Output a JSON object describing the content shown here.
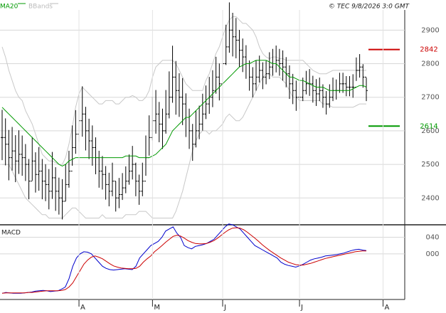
{
  "header": {
    "legend": [
      {
        "label": "MA20",
        "color": "#009900"
      },
      {
        "label": "BBands",
        "color": "#bbbbbb"
      }
    ],
    "copyright": "© TEC 9/8/2026 3:0 GMT"
  },
  "chart_data": [
    {
      "type": "ohlc",
      "ylim": [
        2320,
        2960
      ],
      "y_ticks": [
        {
          "value": 2400,
          "label": "2400"
        },
        {
          "value": 2500,
          "label": "2500"
        },
        {
          "value": 2600,
          "label": "2600"
        },
        {
          "value": 2700,
          "label": "2700"
        },
        {
          "value": 2800,
          "label": "2800"
        },
        {
          "value": 2900,
          "label": "2900"
        }
      ],
      "x_ticks": [
        "A",
        "M",
        "J",
        "J",
        "A"
      ],
      "x_tick_positions": [
        23,
        45,
        66,
        89,
        114
      ],
      "series_close": [
        2580,
        2560,
        2520,
        2540,
        2510,
        2530,
        2520,
        2500,
        2450,
        2510,
        2470,
        2480,
        2450,
        2440,
        2420,
        2460,
        2420,
        2400,
        2390,
        2440,
        2480,
        2550,
        2590,
        2630,
        2650,
        2600,
        2570,
        2550,
        2520,
        2480,
        2470,
        2440,
        2420,
        2450,
        2400,
        2410,
        2430,
        2450,
        2480,
        2500,
        2450,
        2420,
        2450,
        2520,
        2580,
        2630,
        2650,
        2620,
        2600,
        2650,
        2700,
        2760,
        2720,
        2700,
        2680,
        2640,
        2600,
        2560,
        2600,
        2620,
        2650,
        2680,
        2700,
        2720,
        2760,
        2740,
        2800,
        2850,
        2900,
        2880,
        2870,
        2840,
        2820,
        2800,
        2760,
        2740,
        2760,
        2780,
        2760,
        2770,
        2790,
        2800,
        2810,
        2800,
        2790,
        2770,
        2740,
        2720,
        2700,
        2700,
        2720,
        2740,
        2740,
        2720,
        2710,
        2720,
        2700,
        2680,
        2700,
        2720,
        2720,
        2740,
        2740,
        2730,
        2730,
        2730,
        2780,
        2790,
        2760,
        2720
      ],
      "series_range": [
        150,
        140,
        150,
        130,
        140,
        130,
        120,
        110,
        120,
        130,
        120,
        130,
        120,
        110,
        120,
        140,
        130,
        110,
        120,
        110,
        110,
        120,
        130,
        140,
        150,
        130,
        120,
        120,
        110,
        110,
        100,
        100,
        100,
        100,
        90,
        90,
        80,
        80,
        90,
        100,
        100,
        90,
        100,
        120,
        120,
        130,
        130,
        120,
        120,
        130,
        140,
        170,
        160,
        130,
        140,
        130,
        120,
        110,
        110,
        100,
        110,
        100,
        110,
        110,
        110,
        110,
        120,
        120,
        150,
        130,
        120,
        110,
        100,
        100,
        90,
        90,
        90,
        80,
        80,
        70,
        80,
        80,
        80,
        80,
        90,
        90,
        100,
        90,
        90,
        80,
        70,
        70,
        80,
        80,
        80,
        70,
        70,
        70,
        70,
        70,
        60,
        60,
        60,
        60,
        60,
        70,
        70,
        70,
        70,
        70
      ],
      "ma20": [
        2670,
        2660,
        2650,
        2640,
        2630,
        2620,
        2610,
        2600,
        2590,
        2580,
        2570,
        2560,
        2550,
        2540,
        2530,
        2520,
        2510,
        2500,
        2495,
        2500,
        2510,
        2515,
        2520,
        2520,
        2520,
        2520,
        2520,
        2520,
        2520,
        2520,
        2520,
        2520,
        2520,
        2520,
        2520,
        2520,
        2520,
        2525,
        2525,
        2525,
        2525,
        2520,
        2520,
        2520,
        2520,
        2525,
        2530,
        2540,
        2550,
        2560,
        2580,
        2600,
        2610,
        2620,
        2630,
        2640,
        2640,
        2650,
        2660,
        2670,
        2680,
        2690,
        2700,
        2710,
        2720,
        2730,
        2740,
        2750,
        2760,
        2770,
        2780,
        2790,
        2795,
        2800,
        2800,
        2805,
        2810,
        2810,
        2810,
        2810,
        2805,
        2800,
        2800,
        2790,
        2780,
        2770,
        2760,
        2760,
        2755,
        2750,
        2750,
        2745,
        2740,
        2735,
        2730,
        2730,
        2730,
        2725,
        2720,
        2720,
        2720,
        2720,
        2720,
        2720,
        2720,
        2725,
        2730,
        2735,
        2735,
        2730
      ],
      "bb_upper": [
        2850,
        2820,
        2780,
        2750,
        2720,
        2700,
        2690,
        2660,
        2640,
        2620,
        2590,
        2560,
        2530,
        2520,
        2510,
        2510,
        2505,
        2500,
        2500,
        2520,
        2560,
        2610,
        2670,
        2710,
        2730,
        2720,
        2710,
        2700,
        2690,
        2680,
        2680,
        2690,
        2690,
        2690,
        2680,
        2680,
        2690,
        2700,
        2700,
        2705,
        2700,
        2690,
        2690,
        2700,
        2720,
        2760,
        2790,
        2800,
        2810,
        2810,
        2810,
        2810,
        2800,
        2780,
        2760,
        2740,
        2730,
        2720,
        2720,
        2720,
        2720,
        2750,
        2770,
        2800,
        2830,
        2850,
        2880,
        2910,
        2930,
        2940,
        2940,
        2930,
        2920,
        2920,
        2910,
        2900,
        2880,
        2850,
        2830,
        2820,
        2815,
        2820,
        2820,
        2815,
        2815,
        2810,
        2810,
        2810,
        2810,
        2810,
        2810,
        2800,
        2790,
        2780,
        2775,
        2770,
        2770,
        2770,
        2775,
        2780,
        2780,
        2780,
        2780,
        2780,
        2780,
        2780,
        2780,
        2780,
        2780,
        2780
      ],
      "bb_lower": [
        2500,
        2500,
        2500,
        2480,
        2460,
        2440,
        2420,
        2400,
        2390,
        2380,
        2370,
        2360,
        2350,
        2350,
        2340,
        2340,
        2340,
        2340,
        2340,
        2350,
        2360,
        2370,
        2370,
        2360,
        2350,
        2340,
        2340,
        2340,
        2340,
        2340,
        2350,
        2340,
        2340,
        2340,
        2340,
        2340,
        2340,
        2350,
        2350,
        2350,
        2350,
        2360,
        2360,
        2360,
        2350,
        2340,
        2340,
        2340,
        2340,
        2340,
        2340,
        2340,
        2360,
        2390,
        2420,
        2460,
        2500,
        2540,
        2570,
        2590,
        2600,
        2600,
        2590,
        2600,
        2600,
        2610,
        2620,
        2640,
        2650,
        2640,
        2630,
        2630,
        2640,
        2660,
        2680,
        2700,
        2720,
        2740,
        2760,
        2770,
        2770,
        2760,
        2760,
        2760,
        2750,
        2740,
        2720,
        2700,
        2700,
        2690,
        2690,
        2690,
        2690,
        2690,
        2690,
        2690,
        2680,
        2680,
        2675,
        2670,
        2670,
        2670,
        2670,
        2670,
        2670,
        2670,
        2675,
        2680,
        2680,
        2680
      ],
      "reference_lines": [
        {
          "value": 2842,
          "label": "2842",
          "color": "#cc0000"
        },
        {
          "value": 2614,
          "label": "2614",
          "color": "#009900"
        }
      ]
    },
    {
      "type": "line",
      "title": "MACD",
      "ylim": [
        -110,
        70
      ],
      "y_ticks": [
        {
          "value": 40,
          "label": "040"
        },
        {
          "value": 0,
          "label": "000"
        }
      ],
      "series": [
        {
          "color": "#0000cc",
          "values": [
            -95,
            -93,
            -94,
            -95,
            -95,
            -95,
            -94,
            -93,
            -92,
            -90,
            -89,
            -88,
            -89,
            -91,
            -90,
            -89,
            -85,
            -80,
            -60,
            -30,
            -10,
            0,
            5,
            4,
            0,
            -10,
            -20,
            -30,
            -35,
            -38,
            -39,
            -38,
            -37,
            -36,
            -37,
            -38,
            -30,
            -10,
            0,
            10,
            20,
            25,
            30,
            40,
            55,
            60,
            65,
            50,
            40,
            20,
            15,
            12,
            18,
            20,
            22,
            25,
            30,
            35,
            45,
            55,
            65,
            72,
            70,
            65,
            60,
            50,
            40,
            30,
            20,
            15,
            10,
            5,
            0,
            -5,
            -10,
            -20,
            -25,
            -28,
            -30,
            -32,
            -29,
            -25,
            -20,
            -15,
            -12,
            -10,
            -8,
            -5,
            -4,
            -3,
            -2,
            0,
            2,
            5,
            8,
            10,
            11,
            9,
            8
          ]
        },
        {
          "color": "#cc0000",
          "values": [
            -95,
            -94,
            -94,
            -94,
            -94,
            -94,
            -94,
            -93,
            -93,
            -92,
            -91,
            -90,
            -89,
            -89,
            -89,
            -89,
            -88,
            -86,
            -80,
            -70,
            -55,
            -40,
            -25,
            -15,
            -8,
            -5,
            -8,
            -12,
            -18,
            -24,
            -29,
            -32,
            -34,
            -35,
            -36,
            -36,
            -35,
            -30,
            -20,
            -12,
            -5,
            5,
            12,
            20,
            28,
            35,
            42,
            45,
            43,
            38,
            32,
            28,
            25,
            24,
            24,
            25,
            28,
            32,
            38,
            45,
            52,
            58,
            62,
            63,
            62,
            58,
            52,
            45,
            38,
            30,
            22,
            15,
            8,
            2,
            -4,
            -10,
            -15,
            -20,
            -23,
            -26,
            -27,
            -27,
            -25,
            -23,
            -20,
            -17,
            -14,
            -11,
            -9,
            -7,
            -5,
            -3,
            -1,
            1,
            3,
            5,
            6,
            7,
            7
          ]
        }
      ]
    }
  ]
}
